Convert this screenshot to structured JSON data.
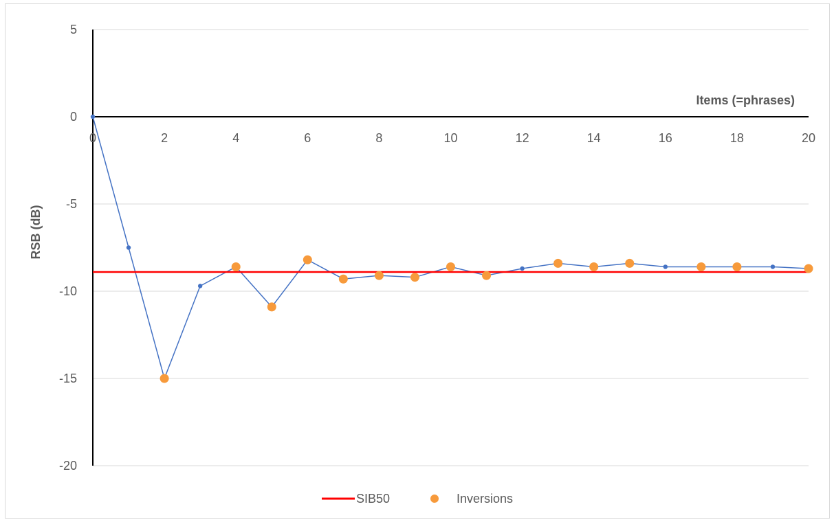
{
  "chart_data": {
    "type": "line",
    "xlabel": "Items (=phrases)",
    "ylabel": "RSB (dB)",
    "xlim": [
      0,
      20
    ],
    "ylim": [
      -20,
      5
    ],
    "x_ticks": [
      0,
      2,
      4,
      6,
      8,
      10,
      12,
      14,
      16,
      18,
      20
    ],
    "y_ticks": [
      5,
      0,
      -5,
      -10,
      -15,
      -20
    ],
    "grid": "horizontal",
    "legend_position": "bottom",
    "series": [
      {
        "type": "line",
        "color": "#4472c4",
        "x": [
          0,
          1,
          2,
          3,
          4,
          5,
          6,
          7,
          8,
          9,
          10,
          11,
          12,
          13,
          14,
          15,
          16,
          17,
          18,
          19,
          20
        ],
        "values": [
          0,
          -7.5,
          -15,
          -9.7,
          -8.6,
          -10.9,
          -8.2,
          -9.3,
          -9.1,
          -9.2,
          -8.6,
          -9.1,
          -8.7,
          -8.4,
          -8.6,
          -8.4,
          -8.6,
          -8.6,
          -8.6,
          -8.6,
          -8.7
        ]
      },
      {
        "name": "SIB50",
        "type": "hline",
        "color": "#ff0000",
        "value": -8.9
      },
      {
        "name": "Inversions",
        "type": "scatter",
        "color": "#f79a3b",
        "x": [
          2,
          4,
          5,
          6,
          7,
          8,
          9,
          10,
          11,
          13,
          14,
          15,
          17,
          18,
          20
        ],
        "values": [
          -15,
          -8.6,
          -10.9,
          -8.2,
          -9.3,
          -9.1,
          -9.2,
          -8.6,
          -9.1,
          -8.4,
          -8.6,
          -8.4,
          -8.6,
          -8.6,
          -8.7
        ]
      }
    ]
  },
  "legend": {
    "sib50_label": "SIB50",
    "inversions_label": "Inversions"
  }
}
